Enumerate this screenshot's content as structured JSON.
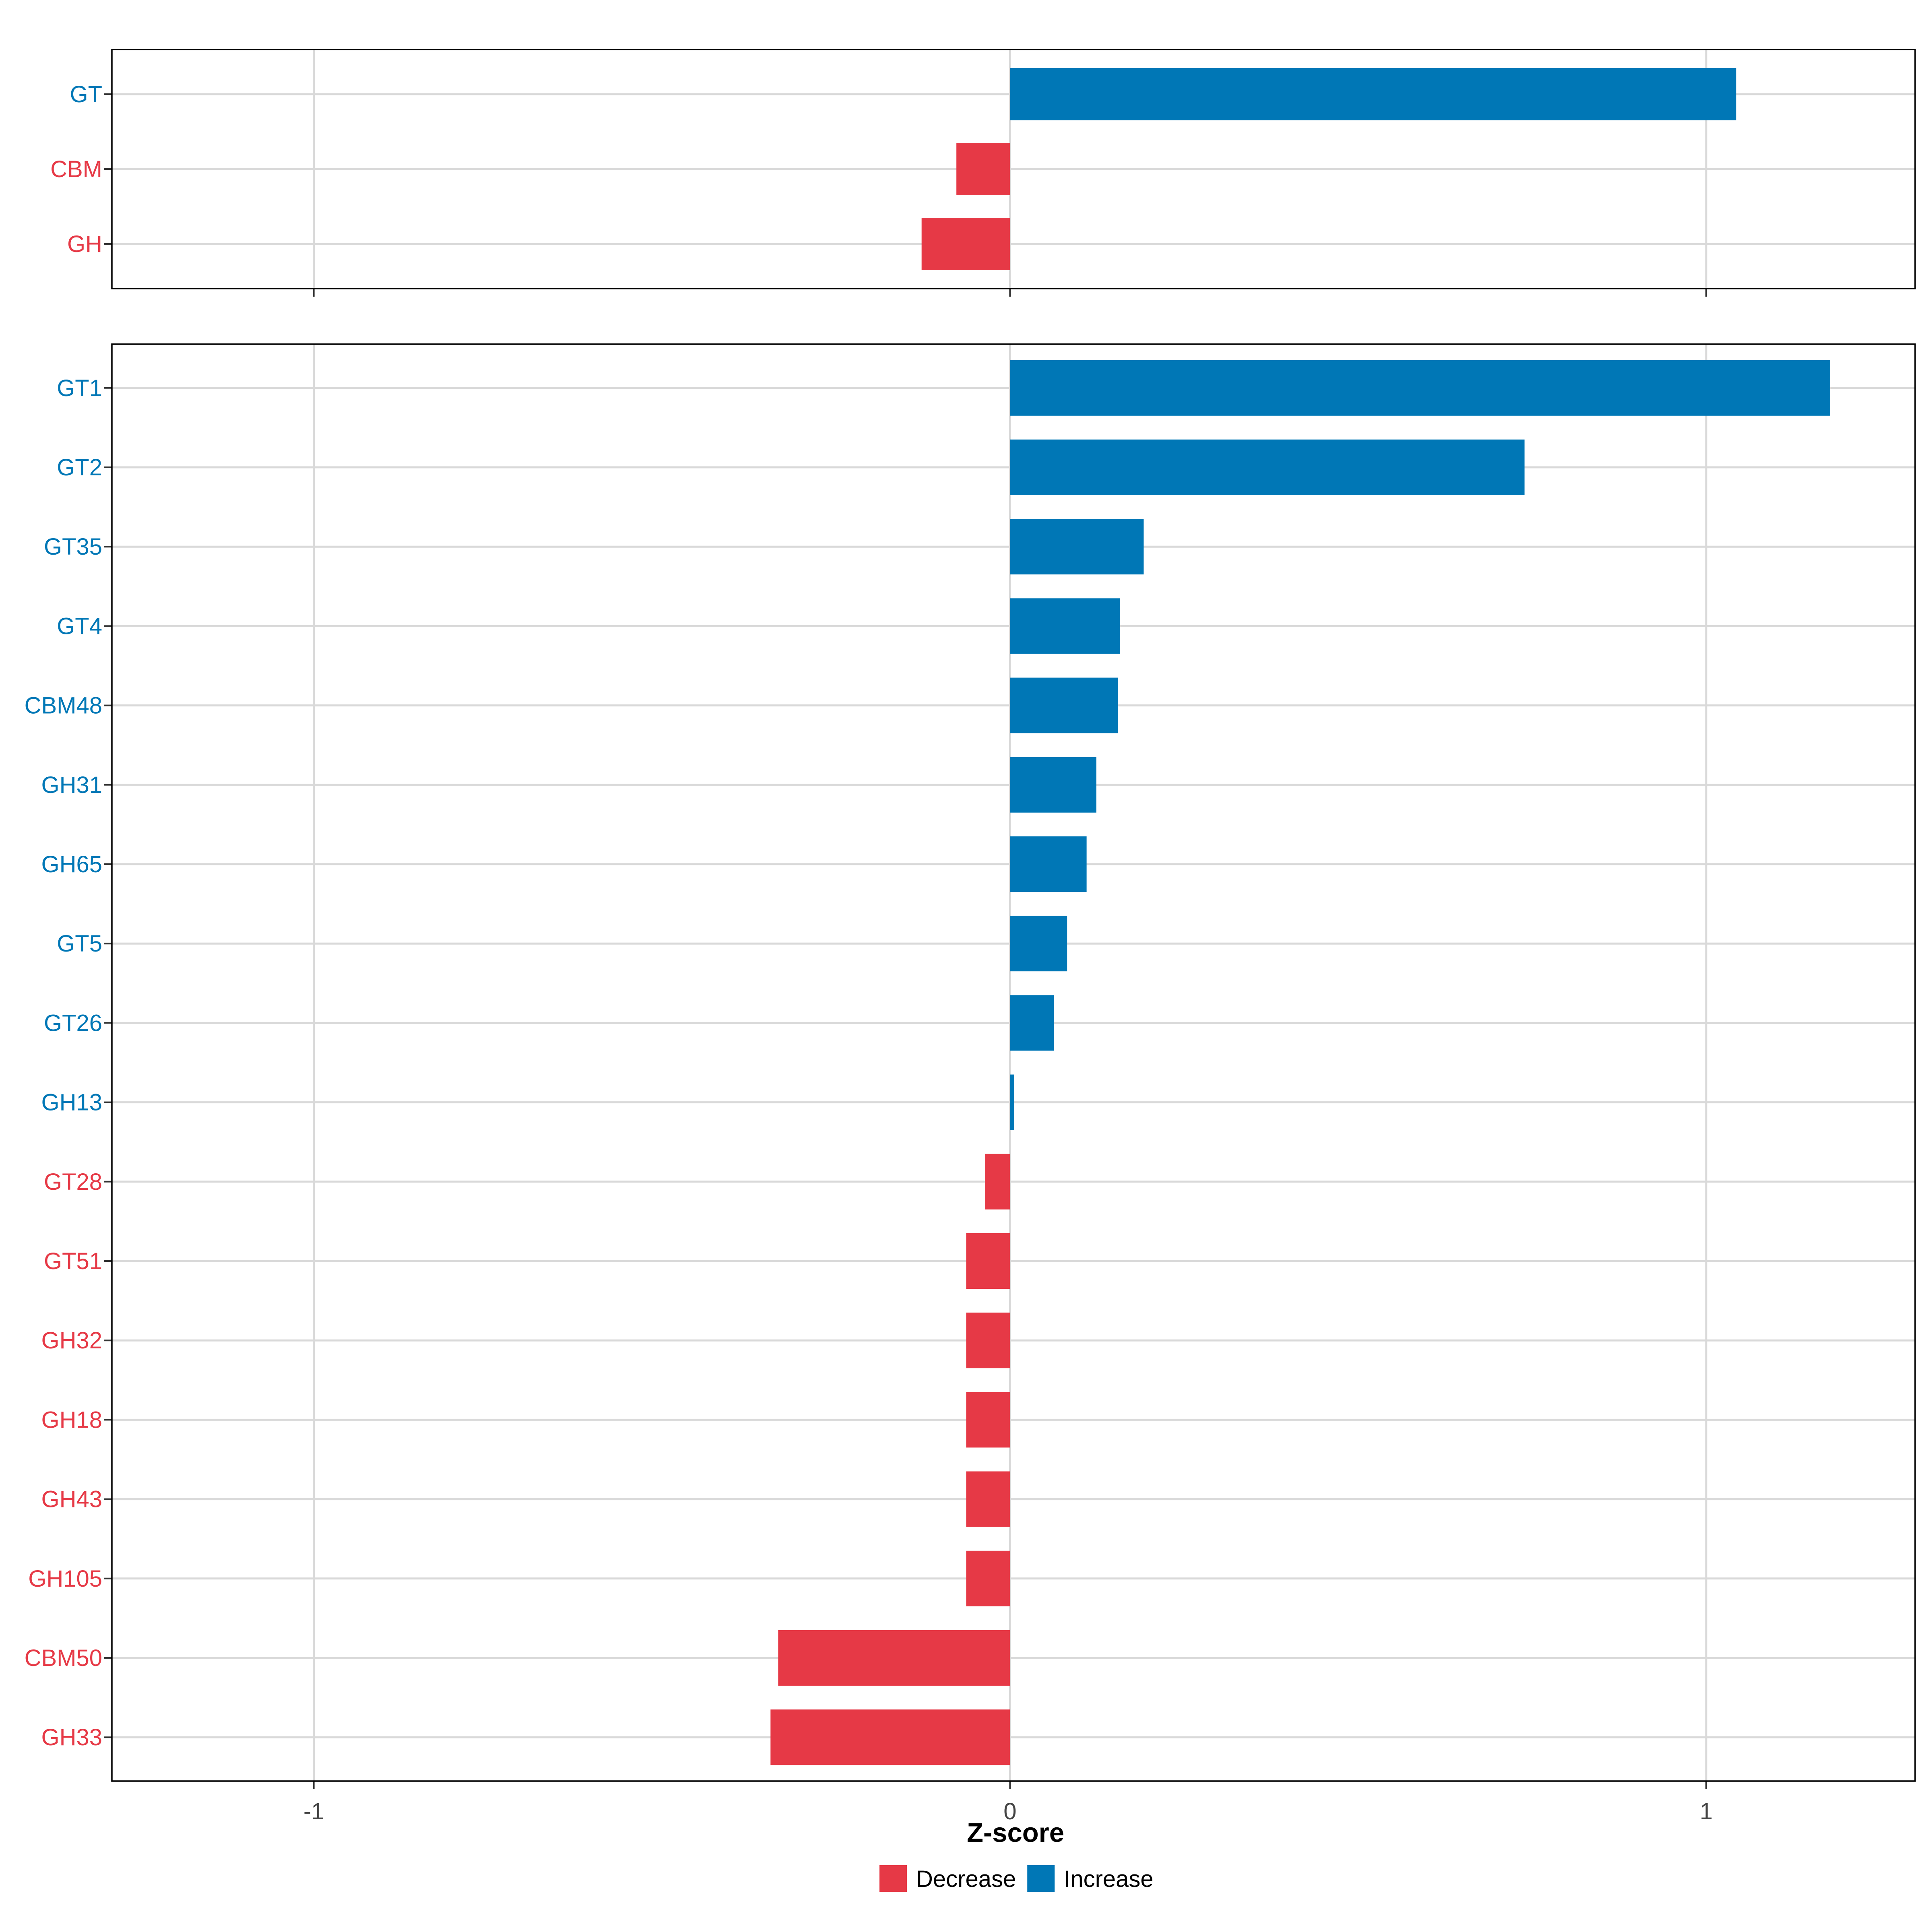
{
  "colors": {
    "decrease": "#E63946",
    "increase": "#0077B6"
  },
  "legend": [
    {
      "key": "decrease",
      "label": "Decrease"
    },
    {
      "key": "increase",
      "label": "Increase"
    }
  ],
  "chart_data": [
    {
      "type": "bar",
      "orientation": "horizontal",
      "panel": "top",
      "categories": [
        "GT",
        "CBM",
        "GH"
      ],
      "values": [
        1.043,
        -0.077,
        -0.127
      ],
      "direction": [
        "increase",
        "decrease",
        "decrease"
      ],
      "xlim": [
        -1.29,
        1.3
      ],
      "xticks": [
        -1,
        0,
        1
      ],
      "grid": true
    },
    {
      "type": "bar",
      "orientation": "horizontal",
      "panel": "bottom",
      "categories": [
        "GT1",
        "GT2",
        "GT35",
        "GT4",
        "CBM48",
        "GH31",
        "GH65",
        "GT5",
        "GT26",
        "GH13",
        "GT28",
        "GT51",
        "GH32",
        "GH18",
        "GH43",
        "GH105",
        "CBM50",
        "GH33"
      ],
      "values": [
        1.178,
        0.739,
        0.192,
        0.158,
        0.155,
        0.124,
        0.11,
        0.082,
        0.063,
        0.006,
        -0.036,
        -0.063,
        -0.063,
        -0.063,
        -0.063,
        -0.063,
        -0.333,
        -0.344
      ],
      "direction": [
        "increase",
        "increase",
        "increase",
        "increase",
        "increase",
        "increase",
        "increase",
        "increase",
        "increase",
        "increase",
        "decrease",
        "decrease",
        "decrease",
        "decrease",
        "decrease",
        "decrease",
        "decrease",
        "decrease"
      ],
      "xlim": [
        -1.29,
        1.3
      ],
      "xticks": [
        -1,
        0,
        1
      ],
      "xtick_labels": [
        "-1",
        "0",
        "1"
      ],
      "xlabel": "Z-score",
      "grid": true
    }
  ]
}
